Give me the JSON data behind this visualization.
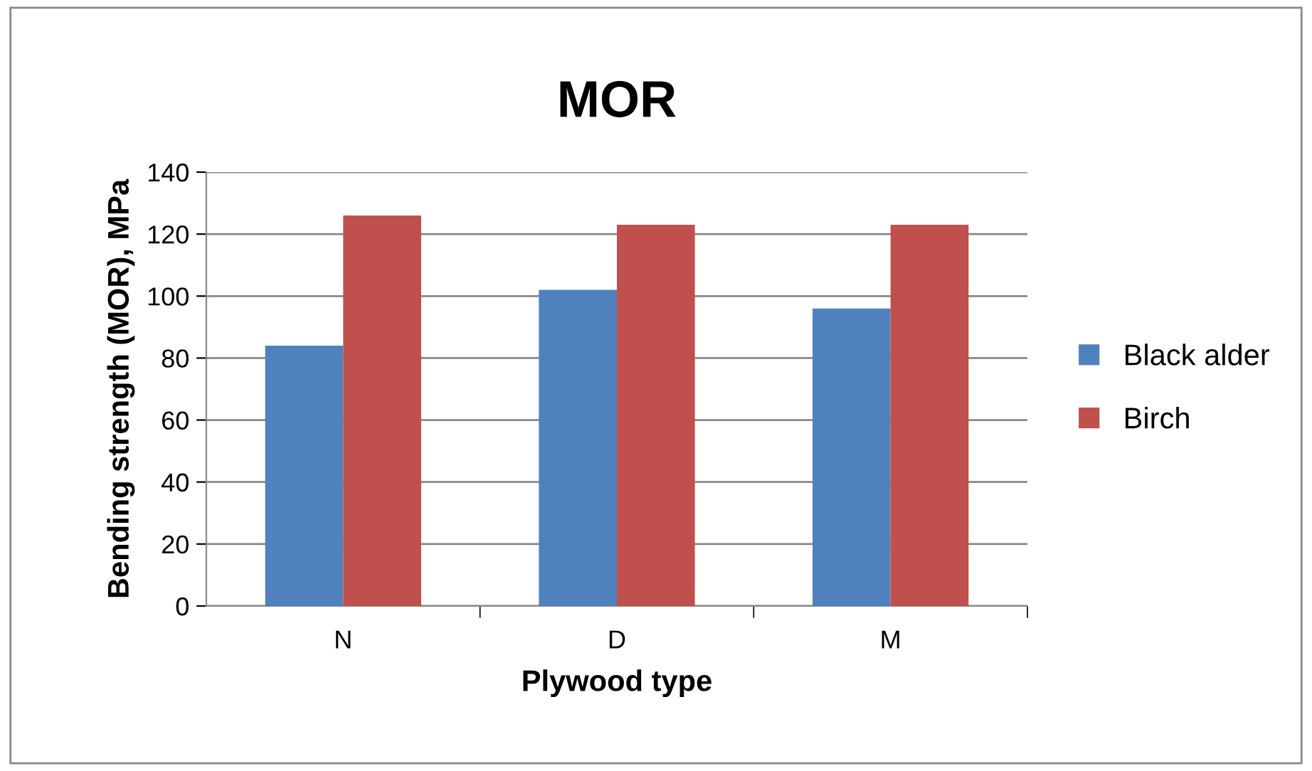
{
  "chart_data": {
    "type": "bar",
    "title": "MOR",
    "xlabel": "Plywood type",
    "ylabel": "Bending strength (MOR), MPa",
    "categories": [
      "N",
      "D",
      "M"
    ],
    "series": [
      {
        "name": "Black alder",
        "color": "#4f81bd",
        "values": [
          84,
          102,
          96
        ]
      },
      {
        "name": "Birch",
        "color": "#c0504d",
        "values": [
          126,
          123,
          123
        ]
      }
    ],
    "ylim": [
      0,
      140
    ],
    "yticks": [
      0,
      20,
      40,
      60,
      80,
      100,
      120,
      140
    ],
    "grid": "y",
    "legend": "right"
  }
}
